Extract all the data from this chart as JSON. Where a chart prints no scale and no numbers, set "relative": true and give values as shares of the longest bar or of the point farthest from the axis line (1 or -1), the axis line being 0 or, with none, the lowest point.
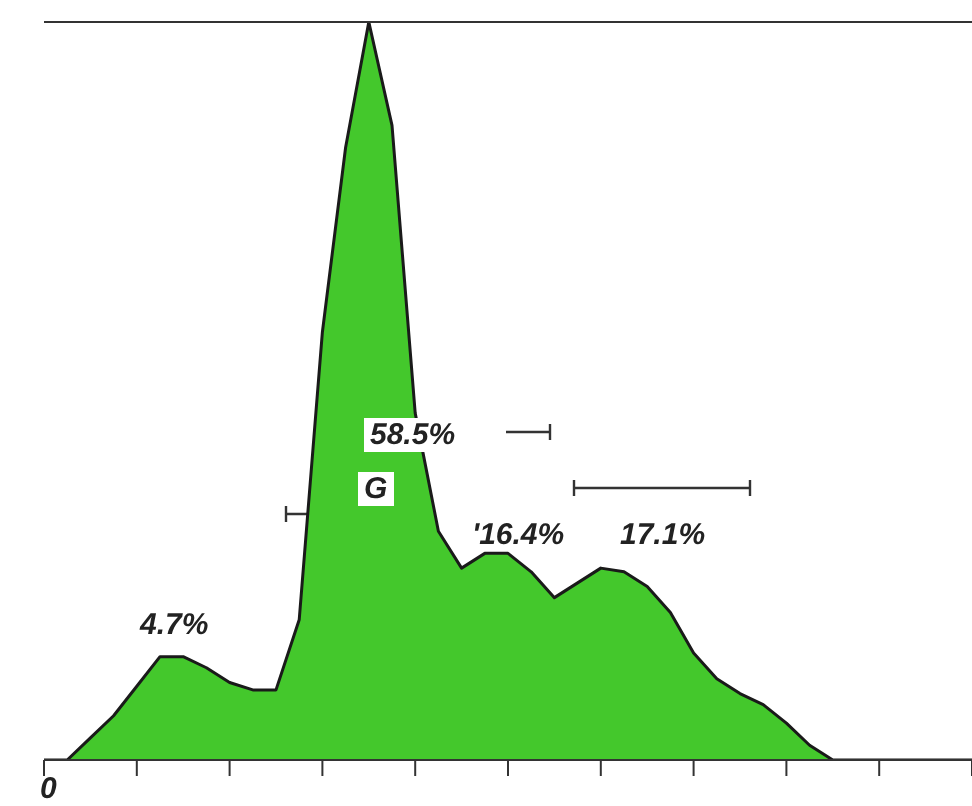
{
  "chart_data": {
    "type": "area",
    "relative": true,
    "color": "#44c82c",
    "categories": [
      null,
      null,
      null,
      null,
      null,
      null,
      null,
      null,
      null,
      null,
      null,
      null,
      null,
      null,
      null,
      null,
      null,
      null,
      null,
      null,
      null,
      null,
      null,
      null,
      null,
      null,
      null,
      null,
      null,
      null,
      null,
      null,
      null,
      null,
      null,
      null,
      null,
      null,
      null,
      null,
      null
    ],
    "values": [
      0,
      0,
      0.03,
      0.06,
      0.1,
      0.14,
      0.14,
      0.125,
      0.105,
      0.095,
      0.095,
      0.19,
      0.58,
      0.83,
      1.0,
      0.86,
      0.47,
      0.31,
      0.26,
      0.28,
      0.28,
      0.255,
      0.22,
      0.24,
      0.26,
      0.255,
      0.235,
      0.2,
      0.145,
      0.11,
      0.09,
      0.075,
      0.05,
      0.02,
      0,
      0,
      0,
      0,
      0,
      0,
      0
    ],
    "annotations": [
      "4.7%",
      "58.5%",
      "G",
      "'16.4%",
      "17.1%",
      "0"
    ]
  }
}
